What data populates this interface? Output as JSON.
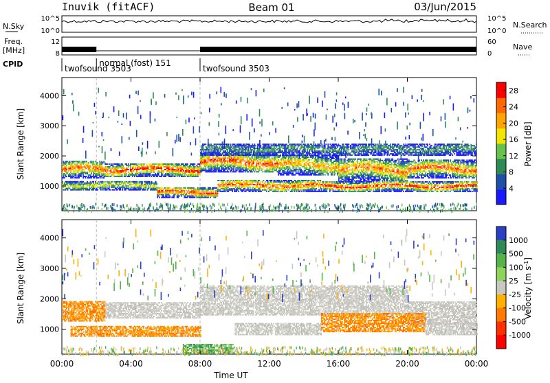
{
  "header": {
    "station": "Inuvik (fitACF)",
    "beam": "Beam 01",
    "date": "03/Jun/2015"
  },
  "top_panels": {
    "nsky_label": "N.Sky",
    "nsearch_label": "N.Search",
    "nsky_ticks": [
      "10^5",
      "10^0"
    ],
    "nsearch_ticks": [
      "10^5",
      "10^0"
    ],
    "freq_label_line1": "Freq.",
    "freq_label_line2": "[MHz]",
    "freq_ticks": [
      "12",
      "8"
    ],
    "nave_label": "Nave",
    "nave_ticks": [
      "60",
      "0"
    ],
    "cpid_label": "CPID",
    "cpid_segments": [
      {
        "label": "twofsound 3503",
        "start_ut": 0.0,
        "end_ut": 2.0
      },
      {
        "label": "normal (fost) 151",
        "start_ut": 2.0,
        "end_ut": 8.0
      },
      {
        "label": "twofsound 3503",
        "start_ut": 8.0,
        "end_ut": 24.0
      }
    ]
  },
  "chart_data": [
    {
      "type": "heatmap",
      "name": "power",
      "ylabel": "Slant Range [km]",
      "x_range_ut": [
        0,
        24
      ],
      "ylim": [
        180,
        4600
      ],
      "yticks": [
        1000,
        2000,
        3000,
        4000
      ],
      "colorbar": {
        "label": "Power [dB]",
        "ticks": [
          4,
          8,
          12,
          16,
          20,
          24,
          28
        ],
        "range": [
          0,
          30
        ],
        "colors": [
          "#1a1aff",
          "#1f4fa8",
          "#2e8b57",
          "#66c24a",
          "#f2e600",
          "#ffa500",
          "#ff6a00",
          "#ff0000"
        ]
      },
      "bands": [
        {
          "t0": 0.0,
          "t1": 2.5,
          "r0": 1250,
          "r1": 1800,
          "level": 0.85
        },
        {
          "t0": 2.5,
          "t1": 8.0,
          "r0": 1300,
          "r1": 1750,
          "level": 0.95
        },
        {
          "t0": 8.0,
          "t1": 12.5,
          "r0": 1450,
          "r1": 2100,
          "level": 0.9
        },
        {
          "t0": 12.5,
          "t1": 16.0,
          "r0": 1350,
          "r1": 2000,
          "level": 0.75
        },
        {
          "t0": 16.0,
          "t1": 20.0,
          "r0": 1150,
          "r1": 1900,
          "level": 0.8
        },
        {
          "t0": 20.0,
          "t1": 24.0,
          "r0": 1250,
          "r1": 1850,
          "level": 0.85
        },
        {
          "t0": 5.5,
          "t1": 9.0,
          "r0": 600,
          "r1": 950,
          "level": 0.95
        },
        {
          "t0": 9.0,
          "t1": 15.0,
          "r0": 800,
          "r1": 1200,
          "level": 0.9
        },
        {
          "t0": 15.0,
          "t1": 24.0,
          "r0": 800,
          "r1": 1150,
          "level": 0.95
        },
        {
          "t0": 8.0,
          "t1": 24.0,
          "r0": 2000,
          "r1": 2400,
          "level": 0.35
        },
        {
          "t0": 0.0,
          "t1": 5.5,
          "r0": 850,
          "r1": 1150,
          "level": 0.6
        }
      ]
    },
    {
      "type": "heatmap",
      "name": "velocity",
      "xlabel": "Time UT",
      "ylabel": "Slant Range [km]",
      "x_range_ut": [
        0,
        24
      ],
      "ylim": [
        180,
        4600
      ],
      "xticks": [
        "00:00",
        "04:00",
        "08:00",
        "12:00",
        "16:00",
        "20:00",
        "00:00"
      ],
      "yticks": [
        1000,
        2000,
        3000,
        4000
      ],
      "colorbar": {
        "label": "Velocity [m s",
        "label_sup": "-1",
        "label_end": "]",
        "ticks": [
          "1000",
          "500",
          "100",
          "25",
          "-25",
          "-100",
          "-500",
          "-1000"
        ],
        "colors": [
          "#2b3fc4",
          "#2e8b57",
          "#55b34a",
          "#8fd45a",
          "#c8c8c0",
          "#ffb000",
          "#ff7a00",
          "#ff3000",
          "#ff0000"
        ]
      },
      "bands": [
        {
          "t0": 0.0,
          "t1": 2.5,
          "r0": 1250,
          "r1": 1900,
          "cls": "orange"
        },
        {
          "t0": 2.5,
          "t1": 8.0,
          "r0": 1350,
          "r1": 1850,
          "cls": "gray"
        },
        {
          "t0": 8.0,
          "t1": 20.0,
          "r0": 1450,
          "r1": 2400,
          "cls": "gray"
        },
        {
          "t0": 20.0,
          "t1": 24.0,
          "r0": 1150,
          "r1": 1900,
          "cls": "gray"
        },
        {
          "t0": 0.5,
          "t1": 8.0,
          "r0": 750,
          "r1": 1100,
          "cls": "orange"
        },
        {
          "t0": 7.0,
          "t1": 10.0,
          "r0": 200,
          "r1": 500,
          "cls": "green"
        },
        {
          "t0": 10.0,
          "t1": 15.0,
          "r0": 800,
          "r1": 1200,
          "cls": "gray"
        },
        {
          "t0": 15.0,
          "t1": 21.0,
          "r0": 900,
          "r1": 1500,
          "cls": "orange"
        },
        {
          "t0": 21.0,
          "t1": 24.0,
          "r0": 800,
          "r1": 1200,
          "cls": "gray"
        }
      ]
    }
  ]
}
